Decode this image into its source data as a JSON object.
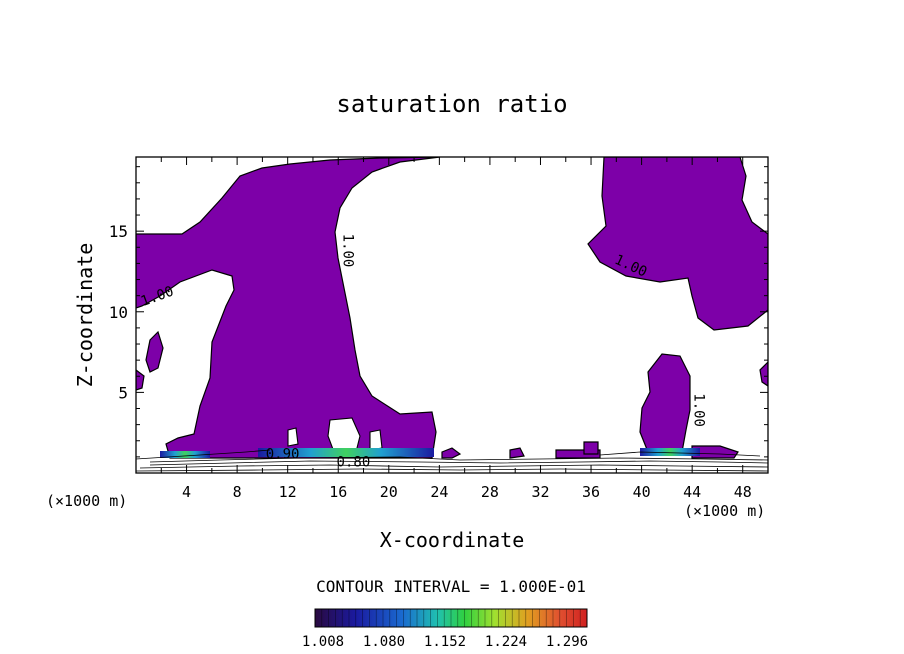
{
  "chart_data": {
    "type": "contour",
    "title": "saturation ratio",
    "xlabel": "X-coordinate",
    "ylabel": "Z-coordinate",
    "x_unit_label": "(×1000 m)",
    "z_unit_label": "(×1000 m)",
    "xlim": [
      0,
      50
    ],
    "ylim": [
      0,
      19.6
    ],
    "x_ticks": [
      4,
      8,
      12,
      16,
      20,
      24,
      28,
      32,
      36,
      40,
      44,
      48
    ],
    "y_ticks": [
      5,
      10,
      15
    ],
    "contour_labels": [
      {
        "text": "1.00",
        "x": 1.8,
        "z": 10.7
      },
      {
        "text": "1.00",
        "x": 16.4,
        "z": 13.8
      },
      {
        "text": "1.00",
        "x": 39.0,
        "z": 12.6
      },
      {
        "text": "1.00",
        "x": 44.2,
        "z": 3.9
      },
      {
        "text": "0.80",
        "x": 17.2,
        "z": 0.4
      },
      {
        "text": "0.90",
        "x": 11.6,
        "z": 0.9
      }
    ],
    "contour_interval_text": "CONTOUR INTERVAL = 1.000E-01",
    "colorbar": {
      "labels": [
        "1.008",
        "1.080",
        "1.152",
        "1.224",
        "1.296"
      ],
      "colors": [
        "#3a0a5a",
        "#1a1aa0",
        "#1a6ad0",
        "#20c0b0",
        "#30d040",
        "#a0e030",
        "#e0a020",
        "#e05030",
        "#d02020"
      ]
    },
    "fill_color": "#7d00a8",
    "grid": false
  }
}
